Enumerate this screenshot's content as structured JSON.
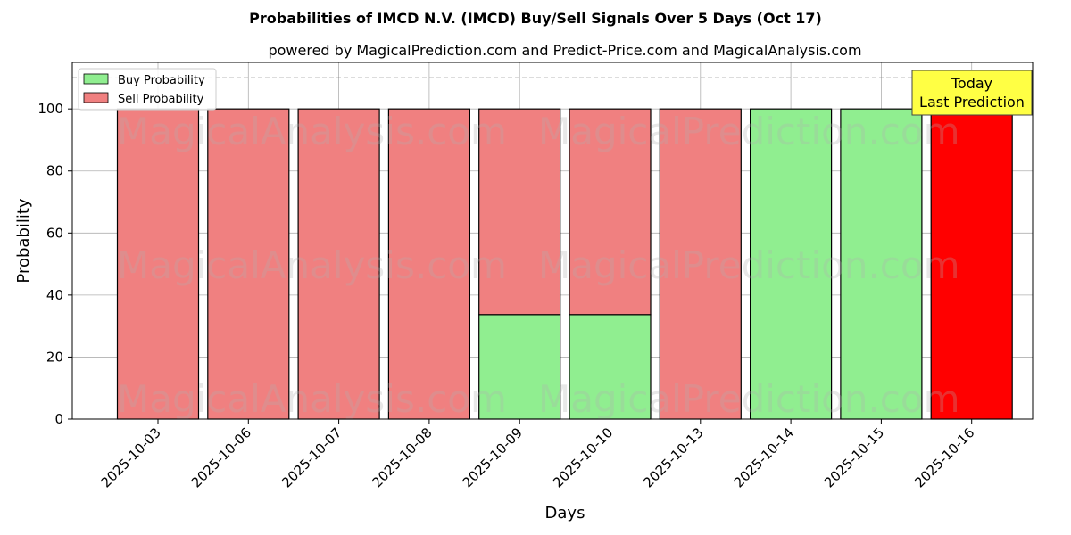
{
  "chart_data": {
    "type": "bar",
    "stacked": true,
    "title": "Probabilities of IMCD N.V. (IMCD) Buy/Sell Signals Over 5 Days (Oct 17)",
    "subtitle": "powered by MagicalPrediction.com and Predict-Price.com and MagicalAnalysis.com",
    "xlabel": "Days",
    "ylabel": "Probability",
    "ylim": [
      0,
      115
    ],
    "yticks": [
      0,
      20,
      40,
      60,
      80,
      100
    ],
    "reference_line": 110,
    "categories": [
      "2025-10-03",
      "2025-10-06",
      "2025-10-07",
      "2025-10-08",
      "2025-10-09",
      "2025-10-10",
      "2025-10-13",
      "2025-10-14",
      "2025-10-15",
      "2025-10-16"
    ],
    "series": [
      {
        "name": "Buy Probability",
        "color": "#90ee90",
        "values": [
          0,
          0,
          0,
          0,
          33.7,
          33.7,
          0,
          100,
          100,
          0
        ]
      },
      {
        "name": "Sell Probability",
        "color": "#f08080",
        "values": [
          100,
          100,
          100,
          100,
          66.3,
          66.3,
          100,
          0,
          0,
          100
        ]
      }
    ],
    "highlight": {
      "index": 9,
      "color": "#ff0000"
    },
    "annotation": {
      "line1": "Today",
      "line2": "Last Prediction",
      "bg": "#ffff44"
    },
    "legend_position": "top-left",
    "grid": true
  },
  "watermarks": [
    "MagicalAnalysis.com",
    "MagicalPrediction.com"
  ]
}
